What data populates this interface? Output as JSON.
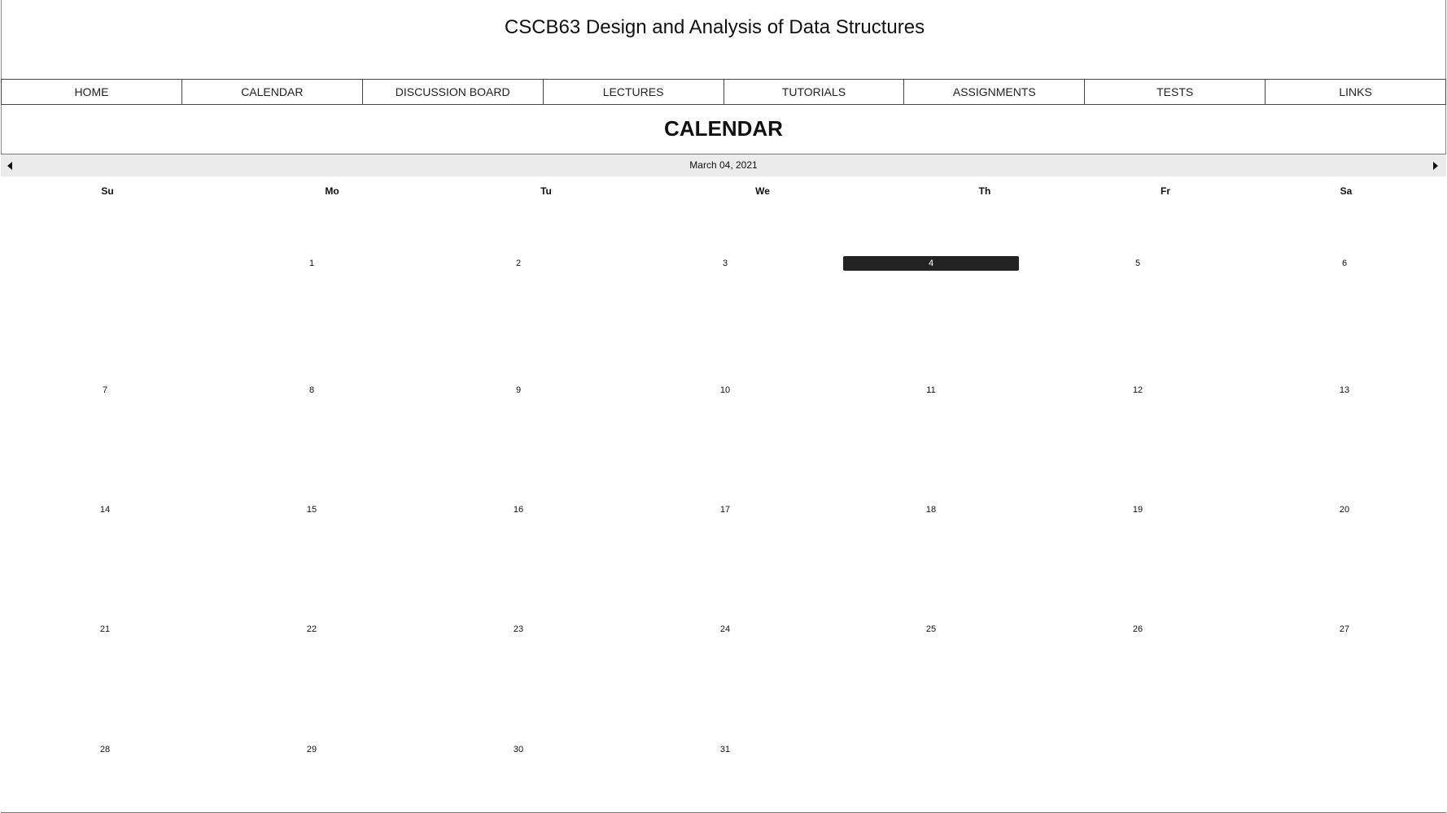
{
  "site": {
    "title": "CSCB63 Design and Analysis of Data Structures"
  },
  "nav": {
    "items": [
      {
        "label": "HOME"
      },
      {
        "label": "CALENDAR"
      },
      {
        "label": "DISCUSSION BOARD"
      },
      {
        "label": "LECTURES"
      },
      {
        "label": "TUTORIALS"
      },
      {
        "label": "ASSIGNMENTS"
      },
      {
        "label": "TESTS"
      },
      {
        "label": "LINKS"
      }
    ]
  },
  "section": {
    "title": "CALENDAR"
  },
  "calendar": {
    "current_label": "March 04, 2021",
    "prev_icon": "triangle-left-icon",
    "next_icon": "triangle-right-icon",
    "weekdays": [
      "Su",
      "Mo",
      "Tu",
      "We",
      "Th",
      "Fr",
      "Sa"
    ],
    "selected_day": "4",
    "selected_color": "#222222",
    "weeks": [
      [
        "",
        "1",
        "2",
        "3",
        "4",
        "5",
        "6"
      ],
      [
        "7",
        "8",
        "9",
        "10",
        "11",
        "12",
        "13"
      ],
      [
        "14",
        "15",
        "16",
        "17",
        "18",
        "19",
        "20"
      ],
      [
        "21",
        "22",
        "23",
        "24",
        "25",
        "26",
        "27"
      ],
      [
        "28",
        "29",
        "30",
        "31",
        "",
        "",
        ""
      ]
    ]
  }
}
